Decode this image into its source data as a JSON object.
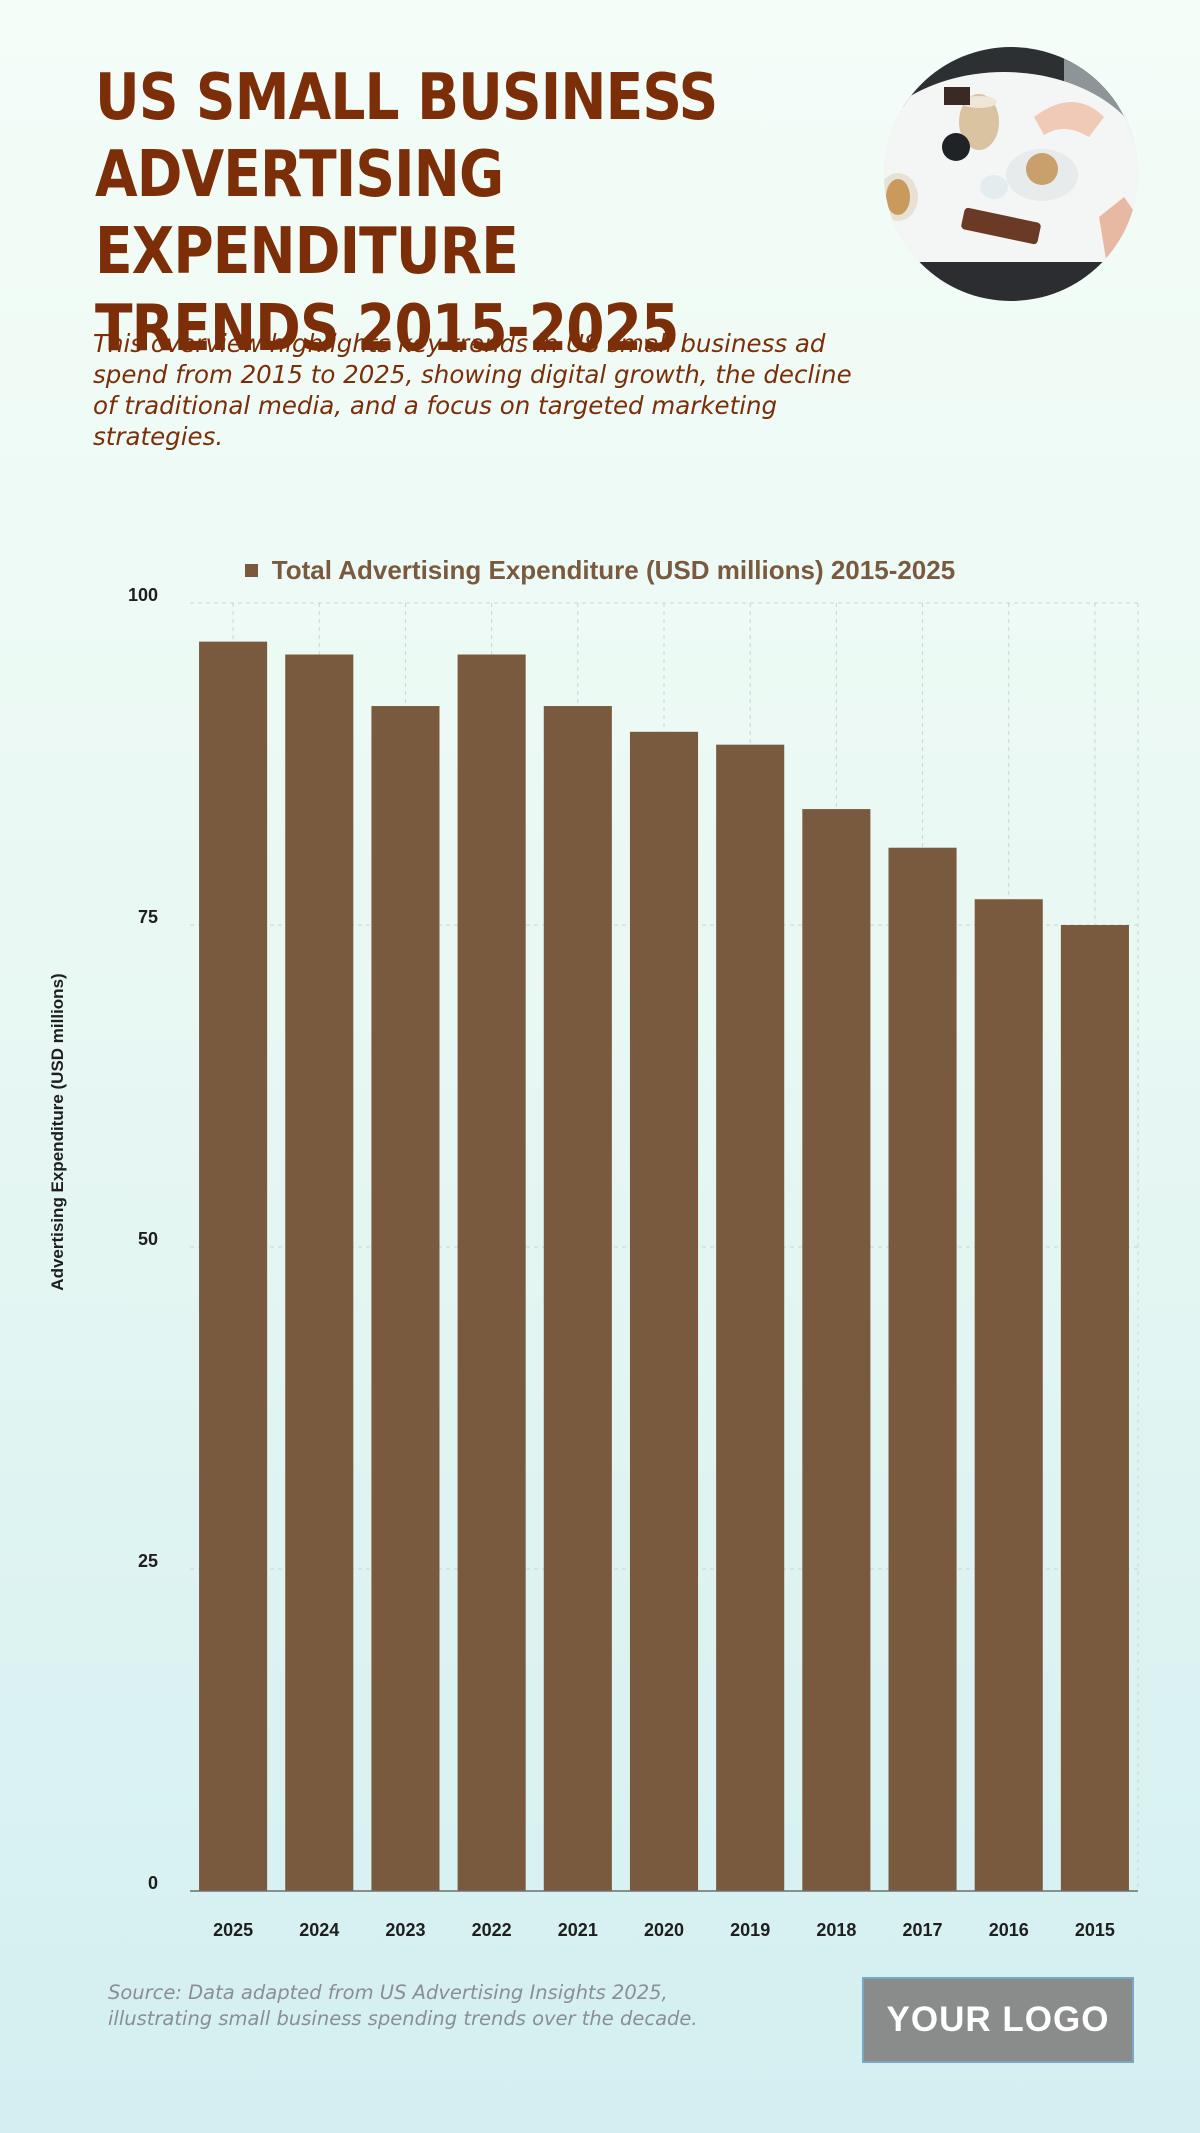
{
  "header": {
    "title": "US SMALL BUSINESS ADVERTISING EXPENDITURE TRENDS 2015-2025",
    "subtitle": "This overview highlights key trends in US small business ad spend from 2015 to 2025, showing digital growth, the decline of traditional media, and a focus on targeted marketing strategies."
  },
  "footer": {
    "source": "Source: Data adapted from US Advertising Insights 2025, illustrating small business spending trends over the decade.",
    "logo_text": "YOUR LOGO"
  },
  "colors": {
    "title": "#7b2e07",
    "bar": "#7a5a3e",
    "grid": "#c9d6d2",
    "axis": "#6f6f6f"
  },
  "chart_data": {
    "type": "bar",
    "categories": [
      "2025",
      "2024",
      "2023",
      "2022",
      "2021",
      "2020",
      "2019",
      "2018",
      "2017",
      "2016",
      "2015"
    ],
    "series": [
      {
        "name": "Total Advertising Expenditure (USD millions) 2015-2025",
        "values": [
          97,
          96,
          92,
          96,
          92,
          90,
          89,
          84,
          81,
          77,
          75
        ]
      }
    ],
    "ylabel": "Advertising Expenditure (USD millions)",
    "xlabel": "",
    "ylim": [
      0,
      100
    ],
    "yticks": [
      0,
      25,
      50,
      75,
      100
    ],
    "grid": true,
    "legend_position": "top-center"
  }
}
